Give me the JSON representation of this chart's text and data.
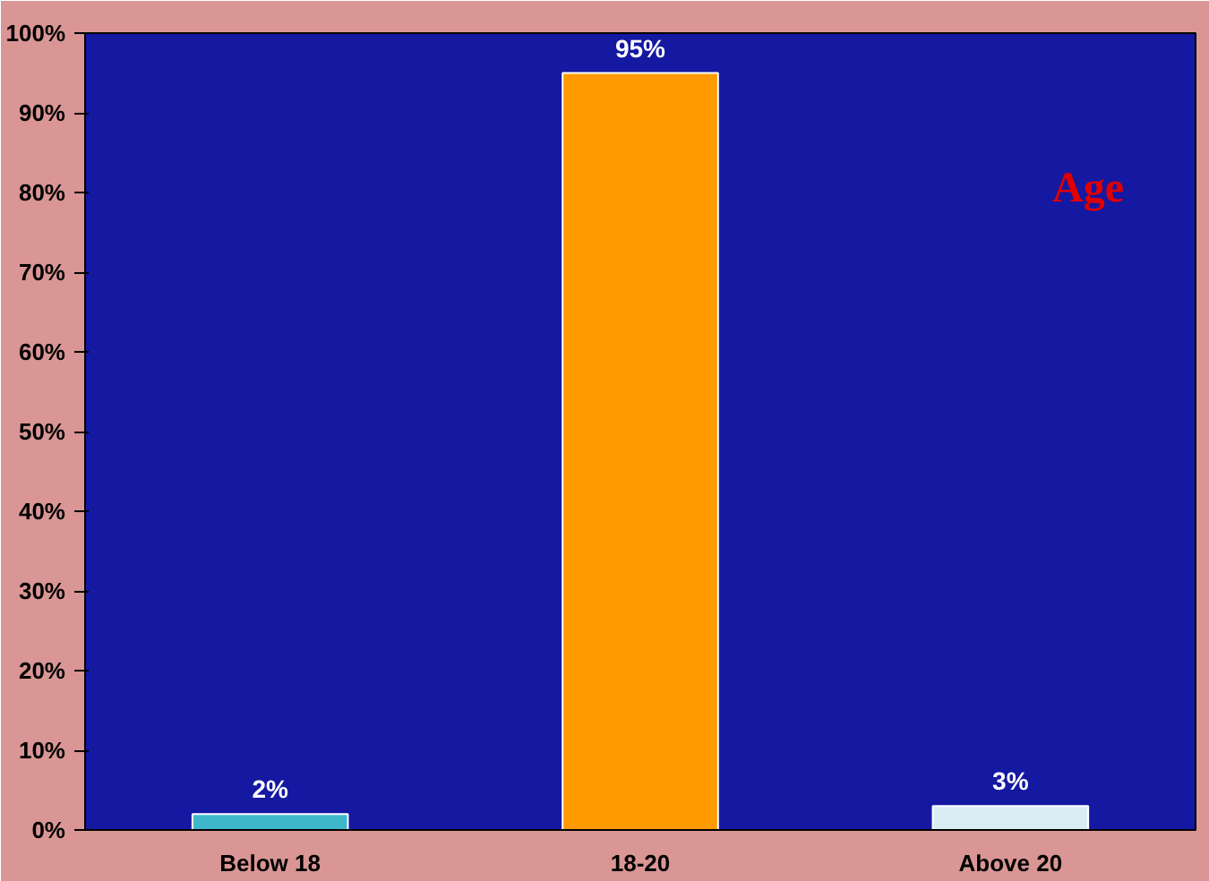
{
  "chart_data": {
    "type": "bar",
    "title": "Age",
    "categories": [
      "Below 18",
      "18-20",
      "Above 20"
    ],
    "values": [
      2,
      95,
      3
    ],
    "colors": [
      "#3fb8cc",
      "#ff9a00",
      "#d8eef4"
    ],
    "value_labels": [
      "2%",
      "95%",
      "3%"
    ],
    "ylim": [
      0,
      100
    ],
    "yticks": [
      {
        "value": 0,
        "label": "0%"
      },
      {
        "value": 10,
        "label": "10%"
      },
      {
        "value": 20,
        "label": "20%"
      },
      {
        "value": 30,
        "label": "30%"
      },
      {
        "value": 40,
        "label": "40%"
      },
      {
        "value": 50,
        "label": "50%"
      },
      {
        "value": 60,
        "label": "60%"
      },
      {
        "value": 70,
        "label": "70%"
      },
      {
        "value": 80,
        "label": "80%"
      },
      {
        "value": 90,
        "label": "90%"
      },
      {
        "value": 100,
        "label": "100%"
      }
    ],
    "grid": false
  }
}
